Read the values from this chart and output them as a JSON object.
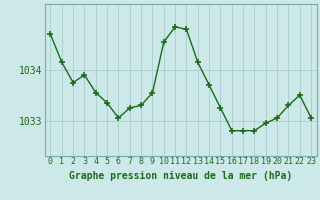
{
  "x": [
    0,
    1,
    2,
    3,
    4,
    5,
    6,
    7,
    8,
    9,
    10,
    11,
    12,
    13,
    14,
    15,
    16,
    17,
    18,
    19,
    20,
    21,
    22,
    23
  ],
  "y": [
    1034.7,
    1034.15,
    1033.75,
    1033.9,
    1033.55,
    1033.35,
    1033.05,
    1033.25,
    1033.3,
    1033.55,
    1034.55,
    1034.85,
    1034.8,
    1034.15,
    1033.7,
    1033.25,
    1032.8,
    1032.8,
    1032.8,
    1032.95,
    1033.05,
    1033.3,
    1033.5,
    1033.05
  ],
  "line_color": "#1a6b1a",
  "marker_color": "#1a6b1a",
  "bg_color": "#cce8e8",
  "grid_color": "#aacccc",
  "xlabel": "Graphe pression niveau de la mer (hPa)",
  "ylim_min": 1032.3,
  "ylim_max": 1035.3,
  "xlim_min": -0.5,
  "xlim_max": 23.5,
  "tick_labels": [
    "0",
    "1",
    "2",
    "3",
    "4",
    "5",
    "6",
    "7",
    "8",
    "9",
    "10",
    "11",
    "12",
    "13",
    "14",
    "15",
    "16",
    "17",
    "18",
    "19",
    "20",
    "21",
    "22",
    "23"
  ],
  "yticks": [
    1033,
    1034
  ],
  "xlabel_fontsize": 7,
  "ylabel_fontsize": 7,
  "tick_fontsize": 6,
  "line_width": 1.0,
  "marker_size": 4
}
